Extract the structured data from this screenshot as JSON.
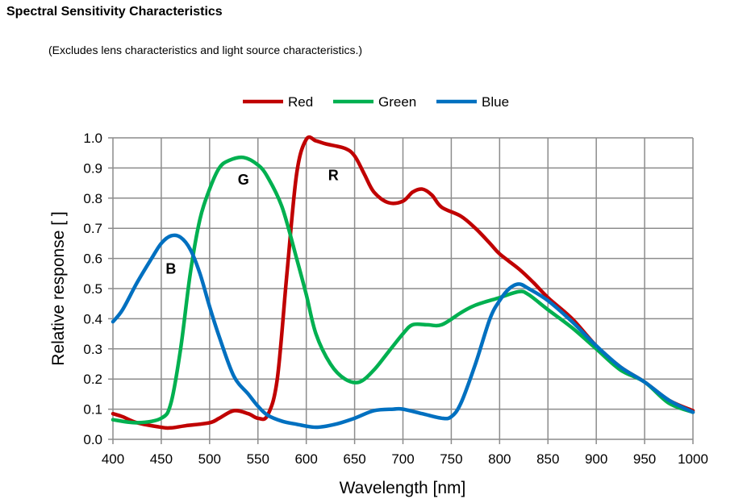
{
  "chart_data": {
    "type": "line",
    "title": "Spectral Sensitivity Characteristics",
    "subtitle": "(Excludes lens characteristics and light source characteristics.)",
    "xlabel": "Wavelength [nm]",
    "ylabel": "Relative response [ ]",
    "xlim": [
      400,
      1000
    ],
    "ylim": [
      0,
      1.0
    ],
    "xticks": [
      "400",
      "450",
      "500",
      "550",
      "600",
      "650",
      "700",
      "750",
      "800",
      "850",
      "900",
      "950",
      "1000"
    ],
    "yticks": [
      "0.0",
      "0.1",
      "0.2",
      "0.3",
      "0.4",
      "0.5",
      "0.6",
      "0.7",
      "0.8",
      "0.9",
      "1.0"
    ],
    "grid": true,
    "legend_position": "top-center",
    "series": [
      {
        "name": "Red",
        "color": "#c00000",
        "x": [
          400,
          410,
          425,
          450,
          460,
          475,
          500,
          510,
          525,
          540,
          550,
          560,
          570,
          580,
          590,
          600,
          610,
          620,
          640,
          650,
          660,
          670,
          685,
          700,
          710,
          720,
          730,
          740,
          760,
          775,
          790,
          800,
          820,
          835,
          850,
          875,
          900,
          925,
          950,
          975,
          1000
        ],
        "y": [
          0.085,
          0.075,
          0.055,
          0.04,
          0.038,
          0.045,
          0.055,
          0.07,
          0.095,
          0.085,
          0.07,
          0.08,
          0.2,
          0.55,
          0.88,
          0.995,
          0.99,
          0.98,
          0.965,
          0.94,
          0.88,
          0.82,
          0.785,
          0.79,
          0.82,
          0.83,
          0.81,
          0.77,
          0.74,
          0.7,
          0.65,
          0.615,
          0.565,
          0.52,
          0.47,
          0.4,
          0.31,
          0.24,
          0.19,
          0.13,
          0.095
        ]
      },
      {
        "name": "Green",
        "color": "#00b050",
        "x": [
          400,
          425,
          450,
          460,
          470,
          480,
          490,
          500,
          510,
          520,
          535,
          550,
          560,
          575,
          590,
          600,
          610,
          625,
          640,
          655,
          670,
          685,
          700,
          710,
          725,
          740,
          760,
          775,
          800,
          820,
          830,
          850,
          875,
          900,
          925,
          950,
          975,
          1000
        ],
        "y": [
          0.065,
          0.055,
          0.07,
          0.12,
          0.3,
          0.55,
          0.73,
          0.83,
          0.9,
          0.925,
          0.935,
          0.91,
          0.87,
          0.77,
          0.6,
          0.48,
          0.35,
          0.25,
          0.2,
          0.19,
          0.23,
          0.29,
          0.35,
          0.38,
          0.38,
          0.38,
          0.42,
          0.445,
          0.47,
          0.49,
          0.48,
          0.43,
          0.37,
          0.3,
          0.23,
          0.19,
          0.12,
          0.09
        ]
      },
      {
        "name": "Blue",
        "color": "#0070c0",
        "x": [
          400,
          410,
          425,
          440,
          450,
          460,
          470,
          480,
          490,
          500,
          510,
          525,
          540,
          550,
          560,
          575,
          590,
          610,
          630,
          650,
          670,
          690,
          700,
          720,
          740,
          750,
          760,
          775,
          790,
          800,
          810,
          820,
          830,
          850,
          875,
          900,
          925,
          950,
          975,
          1000
        ],
        "y": [
          0.39,
          0.43,
          0.52,
          0.6,
          0.65,
          0.675,
          0.67,
          0.63,
          0.55,
          0.44,
          0.34,
          0.21,
          0.15,
          0.11,
          0.08,
          0.06,
          0.05,
          0.04,
          0.05,
          0.07,
          0.095,
          0.1,
          0.1,
          0.085,
          0.07,
          0.075,
          0.12,
          0.25,
          0.4,
          0.46,
          0.5,
          0.515,
          0.5,
          0.46,
          0.39,
          0.31,
          0.24,
          0.19,
          0.13,
          0.09
        ]
      }
    ],
    "annotations": [
      {
        "text": "B",
        "x": 460,
        "y": 0.55
      },
      {
        "text": "G",
        "x": 535,
        "y": 0.845
      },
      {
        "text": "R",
        "x": 628,
        "y": 0.86
      }
    ]
  }
}
